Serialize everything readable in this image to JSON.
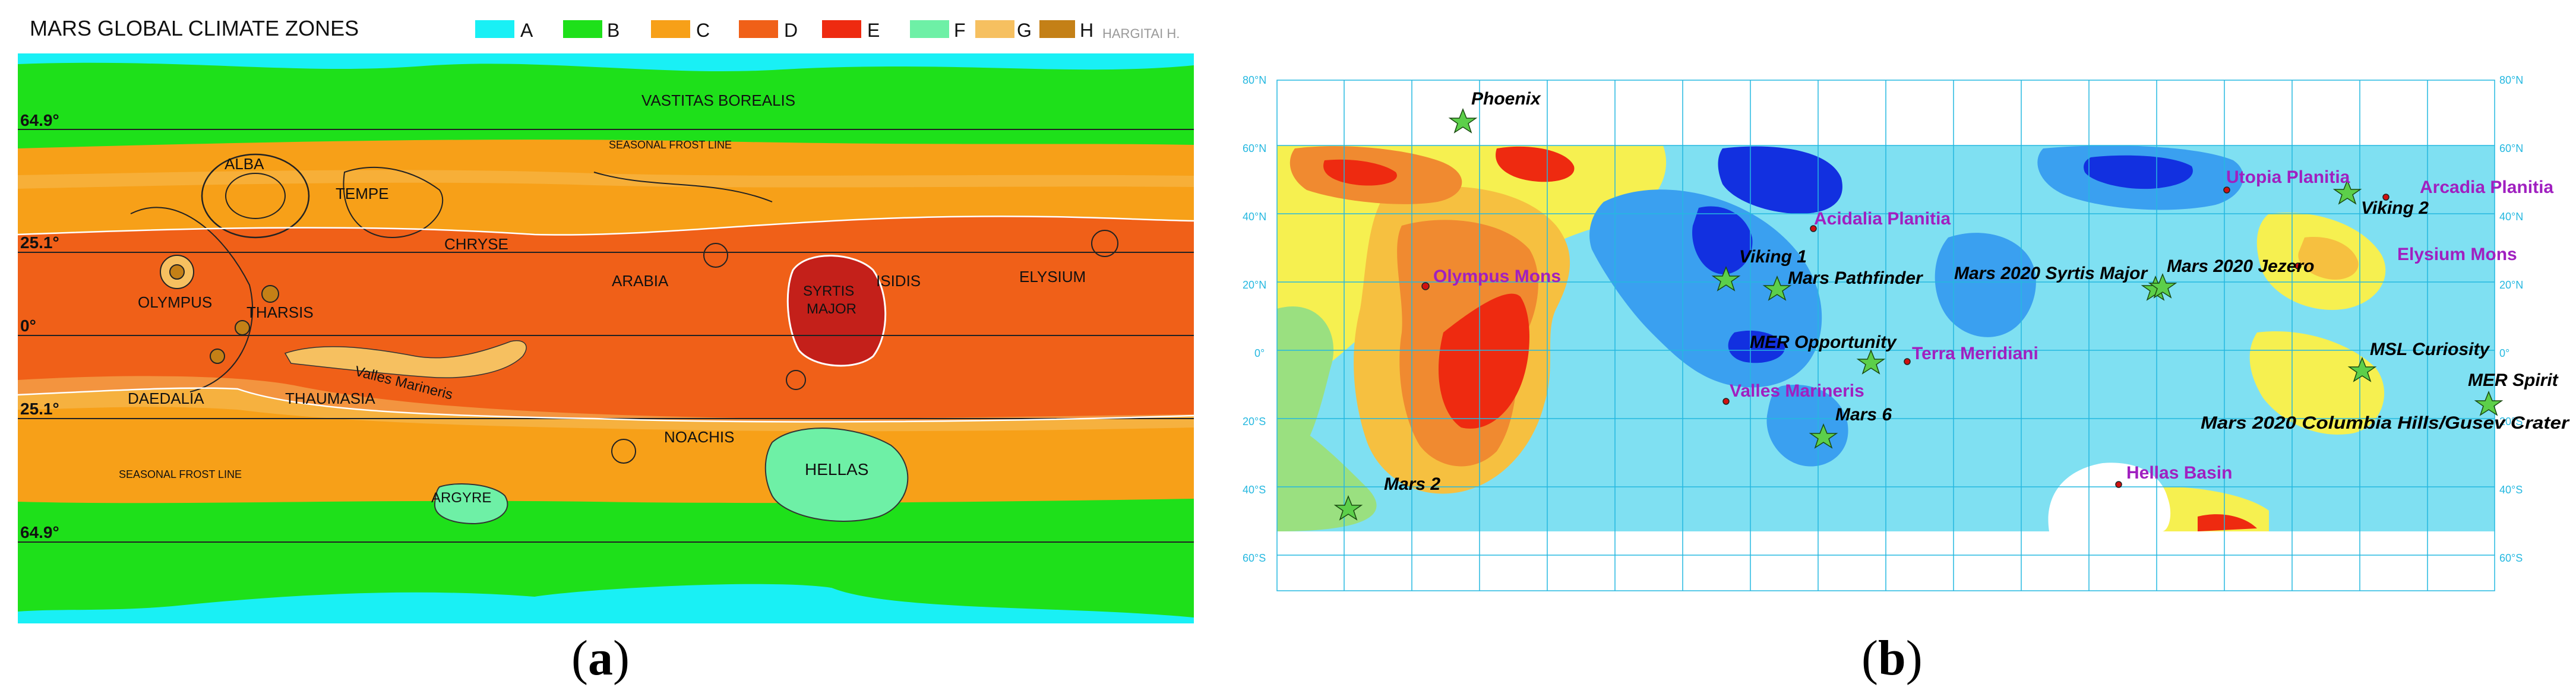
{
  "panel_a": {
    "title": "MARS GLOBAL CLIMATE ZONES",
    "credit": "HARGITAI H.",
    "legend": [
      {
        "label": "A",
        "color": "#19f0f5"
      },
      {
        "label": "B",
        "color": "#1ee01a"
      },
      {
        "label": "C",
        "color": "#f7a018"
      },
      {
        "label": "D",
        "color": "#f06018"
      },
      {
        "label": "E",
        "color": "#ee2a10"
      },
      {
        "label": "F",
        "color": "#6ef0a6"
      },
      {
        "label": "G",
        "color": "#f6c060"
      },
      {
        "label": "H",
        "color": "#c48016"
      }
    ],
    "latitude_labels": [
      "64.9°",
      "25.1°",
      "0°",
      "25.1°",
      "64.9°"
    ],
    "place_names": [
      "VASTITAS BOREALIS",
      "SEASONAL FROST LINE",
      "ALBA",
      "TEMPE",
      "CHRYSE",
      "OLYMPUS",
      "THARSIS",
      "ARABIA",
      "SYRTIS",
      "MAJOR",
      "ISIDIS",
      "ELYSIUM",
      "Valles Marineris",
      "DAEDALIA",
      "THAUMASIA",
      "NOACHIS",
      "SEASONAL FROST LINE",
      "HELLAS",
      "ARGYRE"
    ],
    "caption": "a"
  },
  "panel_b": {
    "lat_ticks": [
      "80°N",
      "60°N",
      "40°N",
      "20°N",
      "0°",
      "20°S",
      "40°S",
      "60°S"
    ],
    "features": [
      {
        "text": "Olympus Mons"
      },
      {
        "text": "Acidalia Planitia"
      },
      {
        "text": "Utopia Planitia"
      },
      {
        "text": "Arcadia Planitia"
      },
      {
        "text": "Elysium Mons"
      },
      {
        "text": "Terra Meridiani"
      },
      {
        "text": "Valles Marineris"
      },
      {
        "text": "Hellas Basin"
      }
    ],
    "sites": [
      {
        "text": "Phoenix"
      },
      {
        "text": "Viking 1"
      },
      {
        "text": "Mars Pathfinder"
      },
      {
        "text": "Mars 2020 Syrtis Major"
      },
      {
        "text": "Mars 2020 Jezero"
      },
      {
        "text": "Viking 2"
      },
      {
        "text": "MER Opportunity"
      },
      {
        "text": "MSL Curiosity"
      },
      {
        "text": "MER Spirit"
      },
      {
        "text": "Mars 2020 Columbia Hills/Gusev Crater"
      },
      {
        "text": "Mars 6"
      },
      {
        "text": "Mars 2"
      }
    ],
    "colors": {
      "feature_text": "#a020c0",
      "site_text": "#000000",
      "grid": "#25b8e0",
      "marker": "#5ccf4a"
    },
    "caption": "b"
  }
}
